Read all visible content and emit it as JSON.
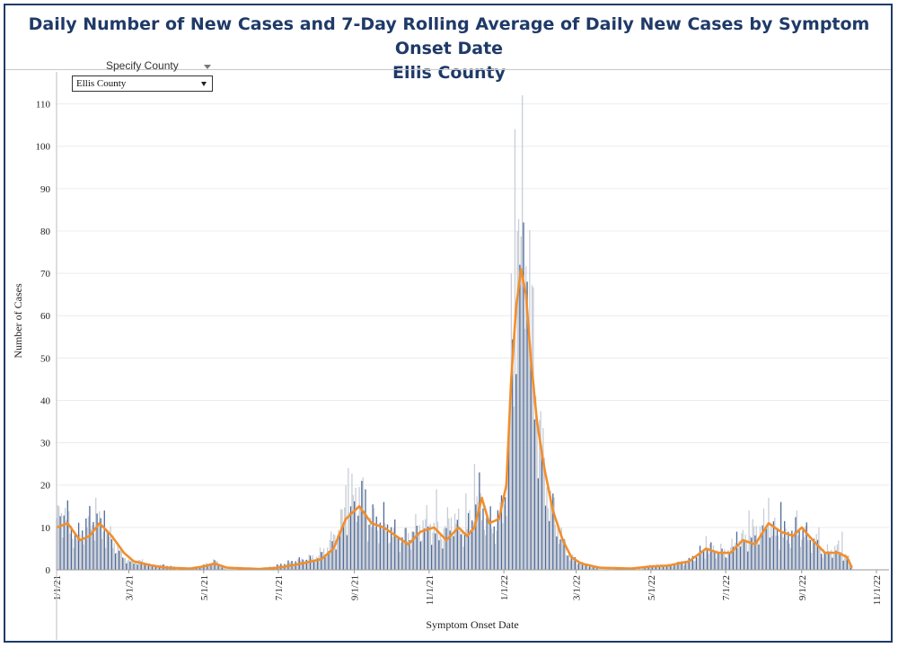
{
  "title": {
    "line1": "Daily Number of New Cases and 7-Day Rolling Average of Daily New Cases by Symptom Onset Date",
    "line2": "Ellis County"
  },
  "filter": {
    "label": "Specify County",
    "selected": "Ellis County"
  },
  "colors": {
    "title": "#1f3a68",
    "bar_primary": "#4e6a99",
    "bar_secondary": "#c8cdd6",
    "rolling_avg": "#f28e2b",
    "grid": "#ececec"
  },
  "chart_data": {
    "type": "bar",
    "xlabel": "Symptom Onset Date",
    "ylabel": "Number of Cases",
    "xlim": [
      "2021-01-01",
      "2022-11-01"
    ],
    "ylim": [
      0,
      115
    ],
    "yticks": [
      0,
      10,
      20,
      30,
      40,
      50,
      60,
      70,
      80,
      90,
      100,
      110
    ],
    "xticks": [
      {
        "date": "2021-01-01",
        "label": "1/1/21"
      },
      {
        "date": "2021-03-01",
        "label": "3/1/21"
      },
      {
        "date": "2021-05-01",
        "label": "5/1/21"
      },
      {
        "date": "2021-07-01",
        "label": "7/1/21"
      },
      {
        "date": "2021-09-01",
        "label": "9/1/21"
      },
      {
        "date": "2021-11-01",
        "label": "11/1/21"
      },
      {
        "date": "2022-01-01",
        "label": "1/1/22"
      },
      {
        "date": "2022-03-01",
        "label": "3/1/22"
      },
      {
        "date": "2022-05-01",
        "label": "5/1/22"
      },
      {
        "date": "2022-07-01",
        "label": "7/1/22"
      },
      {
        "date": "2022-09-01",
        "label": "9/1/22"
      },
      {
        "date": "2022-11-01",
        "label": "11/1/22"
      }
    ],
    "grid": "horizontal",
    "series_daily_anchors": [
      [
        "2021-01-01",
        10
      ],
      [
        "2021-01-05",
        14
      ],
      [
        "2021-01-10",
        12
      ],
      [
        "2021-01-17",
        7
      ],
      [
        "2021-01-25",
        10
      ],
      [
        "2021-02-01",
        12
      ],
      [
        "2021-02-08",
        9
      ],
      [
        "2021-02-15",
        7
      ],
      [
        "2021-02-22",
        4
      ],
      [
        "2021-03-01",
        2
      ],
      [
        "2021-03-10",
        2
      ],
      [
        "2021-03-20",
        1
      ],
      [
        "2021-04-01",
        1
      ],
      [
        "2021-04-15",
        0
      ],
      [
        "2021-05-01",
        1
      ],
      [
        "2021-05-10",
        2
      ],
      [
        "2021-05-20",
        0
      ],
      [
        "2021-06-15",
        0
      ],
      [
        "2021-07-01",
        1
      ],
      [
        "2021-07-15",
        2
      ],
      [
        "2021-08-01",
        3
      ],
      [
        "2021-08-10",
        5
      ],
      [
        "2021-08-20",
        10
      ],
      [
        "2021-08-28",
        15
      ],
      [
        "2021-09-05",
        18
      ],
      [
        "2021-09-12",
        12
      ],
      [
        "2021-09-20",
        11
      ],
      [
        "2021-10-01",
        9
      ],
      [
        "2021-10-10",
        7
      ],
      [
        "2021-10-20",
        9
      ],
      [
        "2021-11-01",
        11
      ],
      [
        "2021-11-10",
        8
      ],
      [
        "2021-11-20",
        12
      ],
      [
        "2021-11-28",
        9
      ],
      [
        "2021-12-05",
        11
      ],
      [
        "2021-12-12",
        17
      ],
      [
        "2021-12-18",
        11
      ],
      [
        "2021-12-25",
        10
      ],
      [
        "2021-12-31",
        14
      ],
      [
        "2022-01-04",
        24
      ],
      [
        "2022-01-08",
        48
      ],
      [
        "2022-01-12",
        65
      ],
      [
        "2022-01-16",
        75
      ],
      [
        "2022-01-20",
        70
      ],
      [
        "2022-01-24",
        55
      ],
      [
        "2022-01-28",
        38
      ],
      [
        "2022-02-02",
        25
      ],
      [
        "2022-02-08",
        15
      ],
      [
        "2022-02-15",
        9
      ],
      [
        "2022-02-22",
        4
      ],
      [
        "2022-03-01",
        2
      ],
      [
        "2022-03-10",
        1
      ],
      [
        "2022-03-25",
        0
      ],
      [
        "2022-04-15",
        0
      ],
      [
        "2022-05-01",
        1
      ],
      [
        "2022-05-15",
        1
      ],
      [
        "2022-06-01",
        2
      ],
      [
        "2022-06-10",
        4
      ],
      [
        "2022-06-20",
        5
      ],
      [
        "2022-07-01",
        4
      ],
      [
        "2022-07-10",
        6
      ],
      [
        "2022-07-20",
        8
      ],
      [
        "2022-08-01",
        10
      ],
      [
        "2022-08-10",
        9
      ],
      [
        "2022-08-20",
        8
      ],
      [
        "2022-09-01",
        9
      ],
      [
        "2022-09-10",
        7
      ],
      [
        "2022-09-20",
        4
      ],
      [
        "2022-10-01",
        5
      ],
      [
        "2022-10-08",
        3
      ],
      [
        "2022-10-12",
        1
      ]
    ],
    "series_daily_spikes": [
      [
        "2021-01-03",
        15
      ],
      [
        "2021-02-02",
        17
      ],
      [
        "2021-02-09",
        14
      ],
      [
        "2021-08-25",
        20
      ],
      [
        "2021-08-27",
        24
      ],
      [
        "2021-09-07",
        21
      ],
      [
        "2021-09-10",
        19
      ],
      [
        "2021-09-25",
        16
      ],
      [
        "2021-11-07",
        19
      ],
      [
        "2021-12-01",
        18
      ],
      [
        "2021-12-08",
        25
      ],
      [
        "2021-12-12",
        23
      ],
      [
        "2022-01-07",
        70
      ],
      [
        "2022-01-10",
        104
      ],
      [
        "2022-01-12",
        80
      ],
      [
        "2022-01-14",
        72
      ],
      [
        "2022-01-16",
        112
      ],
      [
        "2022-01-17",
        82
      ],
      [
        "2022-01-20",
        68
      ],
      [
        "2022-01-23",
        50
      ],
      [
        "2022-01-27",
        41
      ],
      [
        "2022-02-10",
        18
      ],
      [
        "2022-06-15",
        8
      ],
      [
        "2022-07-10",
        9
      ],
      [
        "2022-07-20",
        14
      ],
      [
        "2022-08-05",
        17
      ],
      [
        "2022-08-15",
        16
      ],
      [
        "2022-08-28",
        14
      ],
      [
        "2022-09-15",
        10
      ],
      [
        "2022-10-04",
        9
      ]
    ],
    "series_rolling_avg_anchors": [
      [
        "2021-01-01",
        10
      ],
      [
        "2021-01-10",
        11
      ],
      [
        "2021-01-20",
        7
      ],
      [
        "2021-01-28",
        8
      ],
      [
        "2021-02-05",
        11
      ],
      [
        "2021-02-15",
        8
      ],
      [
        "2021-02-25",
        4
      ],
      [
        "2021-03-05",
        2
      ],
      [
        "2021-03-20",
        1
      ],
      [
        "2021-04-01",
        0.5
      ],
      [
        "2021-04-20",
        0.3
      ],
      [
        "2021-05-01",
        0.8
      ],
      [
        "2021-05-10",
        1.5
      ],
      [
        "2021-05-20",
        0.5
      ],
      [
        "2021-06-15",
        0.2
      ],
      [
        "2021-07-01",
        0.5
      ],
      [
        "2021-07-20",
        1.5
      ],
      [
        "2021-08-05",
        2.5
      ],
      [
        "2021-08-15",
        5
      ],
      [
        "2021-08-25",
        12
      ],
      [
        "2021-09-05",
        15
      ],
      [
        "2021-09-15",
        11
      ],
      [
        "2021-09-25",
        10
      ],
      [
        "2021-10-05",
        8
      ],
      [
        "2021-10-15",
        6
      ],
      [
        "2021-10-25",
        9
      ],
      [
        "2021-11-05",
        10
      ],
      [
        "2021-11-15",
        7
      ],
      [
        "2021-11-25",
        10
      ],
      [
        "2021-12-02",
        8
      ],
      [
        "2021-12-08",
        10
      ],
      [
        "2021-12-14",
        17
      ],
      [
        "2021-12-20",
        11
      ],
      [
        "2021-12-28",
        12
      ],
      [
        "2022-01-03",
        20
      ],
      [
        "2022-01-07",
        45
      ],
      [
        "2022-01-11",
        62
      ],
      [
        "2022-01-15",
        71
      ],
      [
        "2022-01-19",
        65
      ],
      [
        "2022-01-23",
        50
      ],
      [
        "2022-01-28",
        35
      ],
      [
        "2022-02-03",
        24
      ],
      [
        "2022-02-10",
        14
      ],
      [
        "2022-02-18",
        7
      ],
      [
        "2022-02-25",
        3
      ],
      [
        "2022-03-05",
        1.5
      ],
      [
        "2022-03-20",
        0.5
      ],
      [
        "2022-04-15",
        0.3
      ],
      [
        "2022-05-01",
        0.8
      ],
      [
        "2022-05-15",
        1
      ],
      [
        "2022-06-01",
        2
      ],
      [
        "2022-06-15",
        5
      ],
      [
        "2022-06-25",
        4
      ],
      [
        "2022-07-05",
        4
      ],
      [
        "2022-07-15",
        7
      ],
      [
        "2022-07-25",
        6
      ],
      [
        "2022-08-05",
        11
      ],
      [
        "2022-08-15",
        9
      ],
      [
        "2022-08-25",
        8
      ],
      [
        "2022-09-01",
        10
      ],
      [
        "2022-09-10",
        7
      ],
      [
        "2022-09-20",
        4
      ],
      [
        "2022-10-01",
        4
      ],
      [
        "2022-10-08",
        3
      ],
      [
        "2022-10-12",
        0.5
      ]
    ]
  }
}
